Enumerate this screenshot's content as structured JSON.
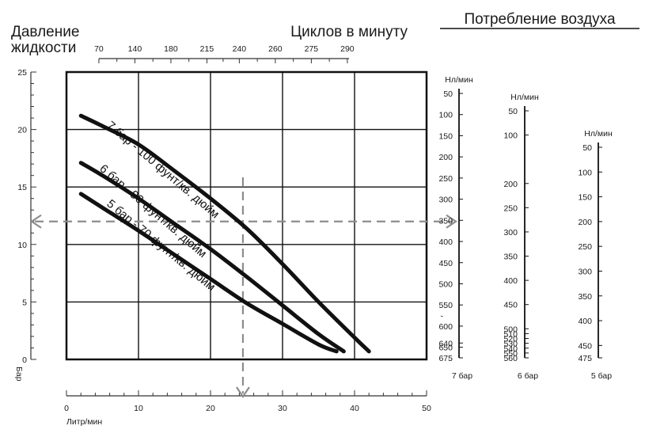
{
  "chart_data": {
    "type": "line",
    "titles": {
      "pressure": [
        "Давление",
        "жидкости"
      ],
      "cycles": "Циклов в минуту",
      "air": "Потребление воздуха"
    },
    "ylabel": "Бар",
    "xlabel": "Литр/мин",
    "xlim": [
      0,
      50
    ],
    "ylim": [
      0,
      25
    ],
    "x_ticks": [
      0,
      10,
      20,
      30,
      40,
      50
    ],
    "y_ticks": [
      0,
      5,
      10,
      15,
      20,
      25
    ],
    "cycles_axis": {
      "ticks": [
        "70",
        "140",
        "180",
        "215",
        "240",
        "260",
        "275",
        "290"
      ],
      "positions_flow": [
        4.5,
        9.5,
        14.5,
        19.5,
        24,
        29,
        34,
        39
      ]
    },
    "grid": true,
    "series": [
      {
        "name": "7 бар - 100 фунт/кв. дюйм",
        "points": [
          [
            2,
            21.2
          ],
          [
            5,
            20.3
          ],
          [
            10,
            18.7
          ],
          [
            15,
            16.4
          ],
          [
            20,
            14.0
          ],
          [
            25,
            11.4
          ],
          [
            30,
            8.3
          ],
          [
            35,
            5.0
          ],
          [
            40,
            1.9
          ],
          [
            42,
            0.7
          ]
        ]
      },
      {
        "name": "6 бар - 90 фунт/кв. дюйм",
        "points": [
          [
            2,
            17.1
          ],
          [
            5,
            16.0
          ],
          [
            10,
            14.0
          ],
          [
            15,
            11.8
          ],
          [
            20,
            9.6
          ],
          [
            25,
            7.2
          ],
          [
            30,
            4.7
          ],
          [
            35,
            2.2
          ],
          [
            38.5,
            0.7
          ]
        ]
      },
      {
        "name": "5 бар - 70 фунт/кв. дюйм",
        "points": [
          [
            2,
            14.4
          ],
          [
            5,
            13.2
          ],
          [
            10,
            11.2
          ],
          [
            15,
            9.1
          ],
          [
            20,
            7.0
          ],
          [
            25,
            4.9
          ],
          [
            30,
            3.1
          ],
          [
            35,
            1.3
          ],
          [
            37.5,
            0.7
          ]
        ]
      }
    ],
    "example_reading": {
      "flow": 24.5,
      "pressure": 12
    },
    "air_scales": [
      {
        "label": "7 бар",
        "unit": "Нл/мин",
        "ticks": [
          "50",
          "100",
          "150",
          "200",
          "250",
          "300",
          "350",
          "400",
          "450",
          "500",
          "550",
          "600",
          "640",
          "650",
          "675"
        ],
        "values": [
          50,
          100,
          150,
          200,
          250,
          300,
          350,
          400,
          450,
          500,
          550,
          600,
          640,
          650,
          675
        ],
        "min": 0,
        "max": 675,
        "extra_mark": "-"
      },
      {
        "label": "6 бар",
        "unit": "Нл/мин",
        "ticks": [
          "50",
          "100",
          "200",
          "250",
          "300",
          "350",
          "400",
          "450",
          "500",
          "510",
          "520",
          "530",
          "540",
          "550",
          "560"
        ],
        "values": [
          50,
          100,
          200,
          250,
          300,
          350,
          400,
          450,
          500,
          510,
          520,
          530,
          540,
          550,
          560
        ]
      },
      {
        "label": "5 бар",
        "unit": "Нл/мин",
        "ticks": [
          "50",
          "100",
          "150",
          "200",
          "250",
          "300",
          "350",
          "400",
          "450",
          "475"
        ],
        "values": [
          50,
          100,
          150,
          200,
          250,
          300,
          350,
          400,
          450,
          475
        ]
      }
    ]
  }
}
